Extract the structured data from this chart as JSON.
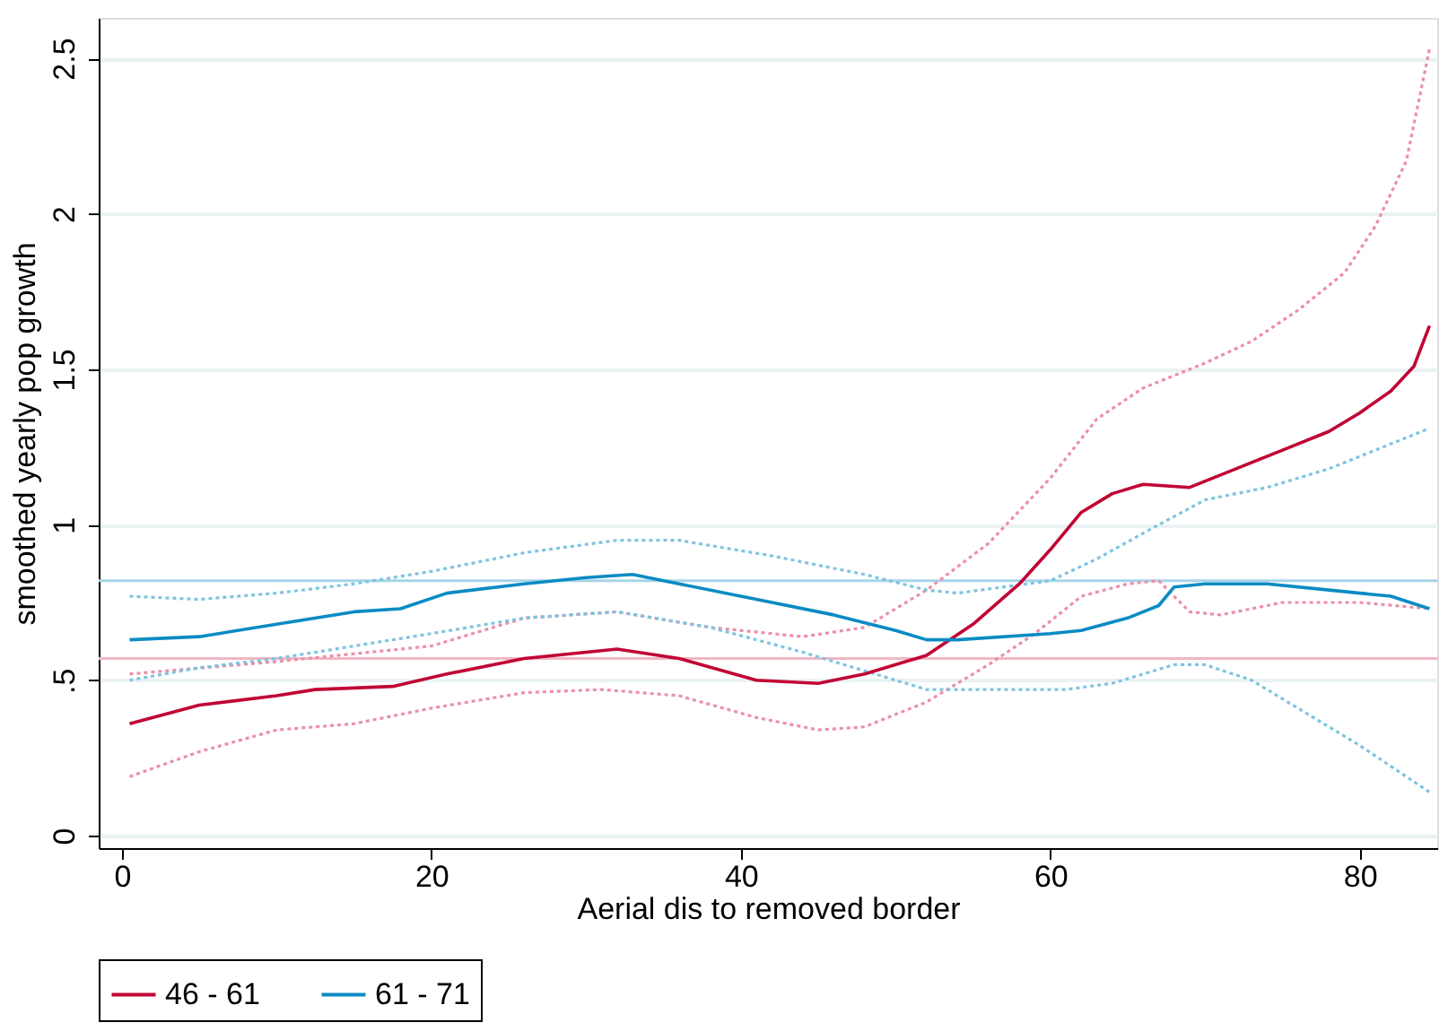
{
  "chart_data": {
    "type": "line",
    "xlabel": "Aerial dis to removed border",
    "ylabel": "smoothed yearly pop growth",
    "xlim": [
      -1.5,
      85
    ],
    "xticks": [
      0,
      20,
      40,
      60,
      80
    ],
    "ylim": [
      -0.04,
      2.63
    ],
    "yticks": [
      0,
      {
        "value": 0.5,
        "label": ".5"
      },
      1,
      1.5,
      2,
      2.5
    ],
    "grid": "y",
    "legend": "bottom",
    "marker": "none",
    "ref_lines": [
      {
        "axis": "y",
        "value": 0.82,
        "color": "#a6d4e8"
      },
      {
        "axis": "y",
        "value": 0.57,
        "color": "#f0b7c4"
      }
    ],
    "series": [
      {
        "line_style": "dotted",
        "color": "#ec8fa8",
        "x": [
          0.5,
          10,
          20,
          26,
          32,
          38,
          44,
          48,
          52,
          56,
          60,
          63,
          66,
          70,
          73,
          76,
          79,
          81,
          83,
          84.5
        ],
        "values": [
          0.52,
          0.56,
          0.61,
          0.7,
          0.72,
          0.67,
          0.64,
          0.67,
          0.79,
          0.94,
          1.15,
          1.34,
          1.44,
          1.52,
          1.59,
          1.69,
          1.81,
          1.96,
          2.17,
          2.53
        ]
      },
      {
        "line_style": "dotted",
        "color": "#ec8fa8",
        "x": [
          0.5,
          5,
          10,
          15,
          20,
          26,
          31,
          36,
          41,
          45,
          48,
          52,
          56,
          59,
          62,
          65,
          67,
          69,
          71,
          75,
          80,
          84.5
        ],
        "values": [
          0.19,
          0.27,
          0.34,
          0.36,
          0.41,
          0.46,
          0.47,
          0.45,
          0.38,
          0.34,
          0.35,
          0.43,
          0.55,
          0.65,
          0.77,
          0.81,
          0.82,
          0.72,
          0.71,
          0.75,
          0.75,
          0.73
        ]
      },
      {
        "line_style": "dotted",
        "color": "#7ec4e0",
        "x": [
          0.5,
          5,
          10,
          15,
          20,
          26,
          32,
          36,
          42,
          48,
          52,
          54,
          60,
          63,
          67,
          70,
          74,
          78,
          82,
          84.5
        ],
        "values": [
          0.77,
          0.76,
          0.78,
          0.81,
          0.85,
          0.91,
          0.95,
          0.95,
          0.9,
          0.84,
          0.79,
          0.78,
          0.82,
          0.89,
          1.0,
          1.08,
          1.12,
          1.18,
          1.26,
          1.31
        ]
      },
      {
        "line_style": "dotted",
        "color": "#7ec4e0",
        "x": [
          0.5,
          5,
          10,
          15,
          20,
          26,
          32,
          38,
          44,
          48,
          52,
          56,
          61,
          64,
          68,
          70,
          73,
          76,
          80,
          84.5
        ],
        "values": [
          0.5,
          0.54,
          0.57,
          0.61,
          0.65,
          0.7,
          0.72,
          0.67,
          0.59,
          0.53,
          0.47,
          0.47,
          0.47,
          0.49,
          0.55,
          0.55,
          0.5,
          0.41,
          0.29,
          0.14
        ]
      },
      {
        "name": "46 - 61",
        "line_style": "solid",
        "color": "#c10534",
        "x": [
          0.5,
          5,
          10,
          12.5,
          17.5,
          21,
          26,
          30,
          32,
          36,
          41,
          45,
          48,
          52,
          55,
          58,
          60,
          62,
          64,
          66,
          69,
          72,
          75,
          78,
          80,
          82,
          83.5,
          84.5
        ],
        "values": [
          0.36,
          0.42,
          0.45,
          0.47,
          0.48,
          0.52,
          0.57,
          0.59,
          0.6,
          0.57,
          0.5,
          0.49,
          0.52,
          0.58,
          0.68,
          0.81,
          0.92,
          1.04,
          1.1,
          1.13,
          1.12,
          1.18,
          1.24,
          1.3,
          1.36,
          1.43,
          1.51,
          1.64
        ]
      },
      {
        "name": "61 - 71",
        "line_style": "solid",
        "color": "#0a8bc3",
        "x": [
          0.5,
          5,
          10,
          15,
          18,
          21,
          26,
          30,
          33,
          36,
          41,
          46,
          50,
          52,
          54,
          60,
          62,
          65,
          67,
          68,
          70,
          74,
          78,
          82,
          84.5
        ],
        "values": [
          0.63,
          0.64,
          0.68,
          0.72,
          0.73,
          0.78,
          0.81,
          0.83,
          0.84,
          0.81,
          0.76,
          0.71,
          0.66,
          0.63,
          0.63,
          0.65,
          0.66,
          0.7,
          0.74,
          0.8,
          0.81,
          0.81,
          0.79,
          0.77,
          0.73
        ]
      }
    ]
  }
}
